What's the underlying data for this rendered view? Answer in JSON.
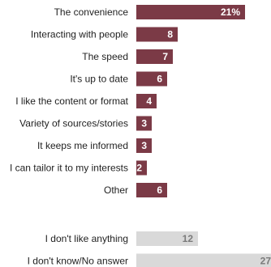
{
  "chart_data": {
    "type": "bar",
    "orientation": "horizontal",
    "title": "",
    "xlabel": "",
    "ylabel": "",
    "groups": [
      {
        "name": "reasons",
        "color": "#7b3a46",
        "label_color": "#ffffff",
        "items": [
          {
            "category": "The convenience",
            "value": 21,
            "label": "21%"
          },
          {
            "category": "Interacting with people",
            "value": 8,
            "label": "8"
          },
          {
            "category": "The speed",
            "value": 7,
            "label": "7"
          },
          {
            "category": "It's up to date",
            "value": 6,
            "label": "6"
          },
          {
            "category": "I like the content or format",
            "value": 4,
            "label": "4"
          },
          {
            "category": "Variety of sources/stories",
            "value": 3,
            "label": "3"
          },
          {
            "category": "It keeps me informed",
            "value": 3,
            "label": "3"
          },
          {
            "category": "I can tailor it to my interests",
            "value": 2,
            "label": "2"
          },
          {
            "category": "Other",
            "value": 6,
            "label": "6"
          }
        ]
      },
      {
        "name": "no-answer",
        "color": "#d9d9d9",
        "label_color": "#7a7a7a",
        "items": [
          {
            "category": "I don't like anything",
            "value": 12,
            "label": "12"
          },
          {
            "category": "I don't know/No answer",
            "value": 27,
            "label": "27"
          }
        ]
      }
    ],
    "xlim": [
      0,
      27
    ],
    "grid": false,
    "legend": "none"
  }
}
